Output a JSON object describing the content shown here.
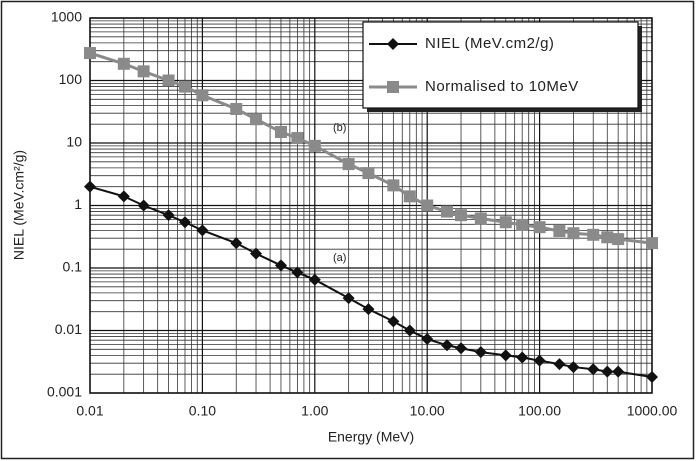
{
  "chart_data": {
    "type": "line",
    "x_label": "Energy (MeV)",
    "y_label": "NIEL (MeV.cm²/g)",
    "annotations": [
      "(b)",
      "(a)"
    ],
    "log_x": true,
    "log_y": true,
    "grid": true,
    "legend": "upper right",
    "xlim": [
      0.01,
      1000
    ],
    "ylim": [
      0.001,
      1000
    ],
    "xticks": [
      0.01,
      {
        "value": 0.1,
        "label": "0.10"
      },
      {
        "value": 1,
        "label": "1.00"
      },
      {
        "value": 10,
        "label": "10.00"
      },
      {
        "value": 100,
        "label": "100.00"
      },
      {
        "value": 1000,
        "label": "1000.00"
      }
    ],
    "yticks": [
      0.001,
      0.01,
      0.1,
      1,
      10,
      100,
      1000
    ],
    "x": [
      0.01,
      0.02,
      0.03,
      0.05,
      0.07,
      0.1,
      0.2,
      0.3,
      0.5,
      0.7,
      1,
      2,
      3,
      5,
      7,
      10,
      15,
      20,
      30,
      50,
      70,
      100,
      150,
      200,
      300,
      400,
      500,
      1000
    ],
    "series": [
      {
        "name": "NIEL (MeV.cm2/g)",
        "color": "#111111",
        "marker": "diamond",
        "values": [
          2.0,
          1.4,
          1.0,
          0.7,
          0.54,
          0.4,
          0.25,
          0.17,
          0.11,
          0.085,
          0.065,
          0.033,
          0.022,
          0.014,
          0.01,
          0.0073,
          0.0058,
          0.0052,
          0.0045,
          0.004,
          0.0037,
          0.0033,
          0.0029,
          0.0026,
          0.0024,
          0.0022,
          0.0022,
          0.0018
        ]
      },
      {
        "name": "Normalised to 10MeV",
        "color": "#8a8a8a",
        "marker": "square",
        "values": [
          275,
          185,
          140,
          100,
          80,
          58,
          35,
          24,
          15,
          12,
          9,
          4.6,
          3.3,
          2.1,
          1.4,
          1.0,
          0.8,
          0.7,
          0.62,
          0.54,
          0.49,
          0.45,
          0.39,
          0.36,
          0.34,
          0.31,
          0.29,
          0.25
        ]
      }
    ]
  }
}
